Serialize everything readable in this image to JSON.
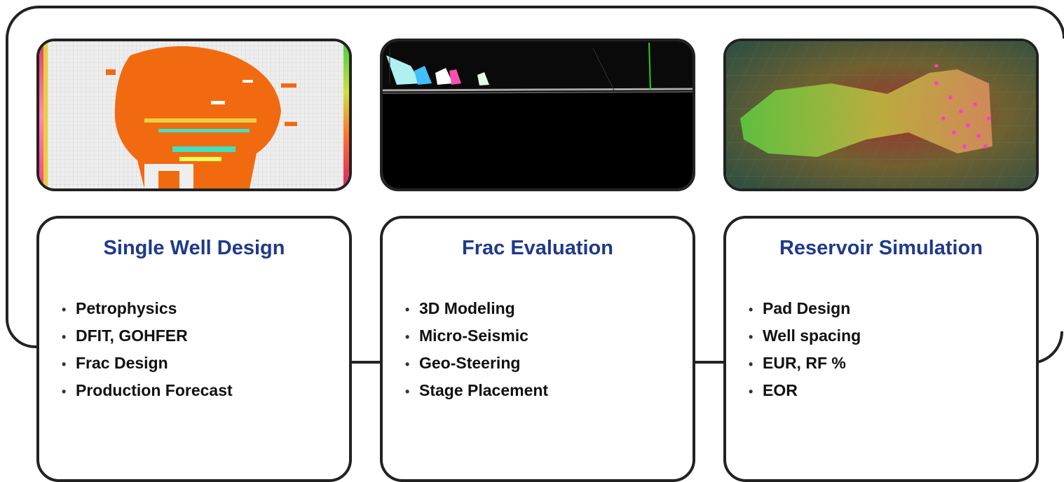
{
  "panels": [
    {
      "title": "Single Well Design",
      "bullets": [
        "Petrophysics",
        "DFIT, GOHFER",
        "Frac Design",
        "Production Forecast"
      ],
      "image": "grid-heatmap-image"
    },
    {
      "title": "Frac Evaluation",
      "bullets": [
        "3D Modeling",
        "Micro-Seismic",
        "Geo-Steering",
        "Stage Placement"
      ],
      "image": "microseismic-3d-image"
    },
    {
      "title": "Reservoir Simulation",
      "bullets": [
        "Pad Design",
        "Well spacing",
        "EUR, RF %",
        "EOR"
      ],
      "image": "reservoir-3d-image"
    }
  ],
  "colors": {
    "title": "#1f3a8a",
    "border": "#222222",
    "frac_orange": "#f26a10",
    "grid_bg": "#eeeeee"
  }
}
